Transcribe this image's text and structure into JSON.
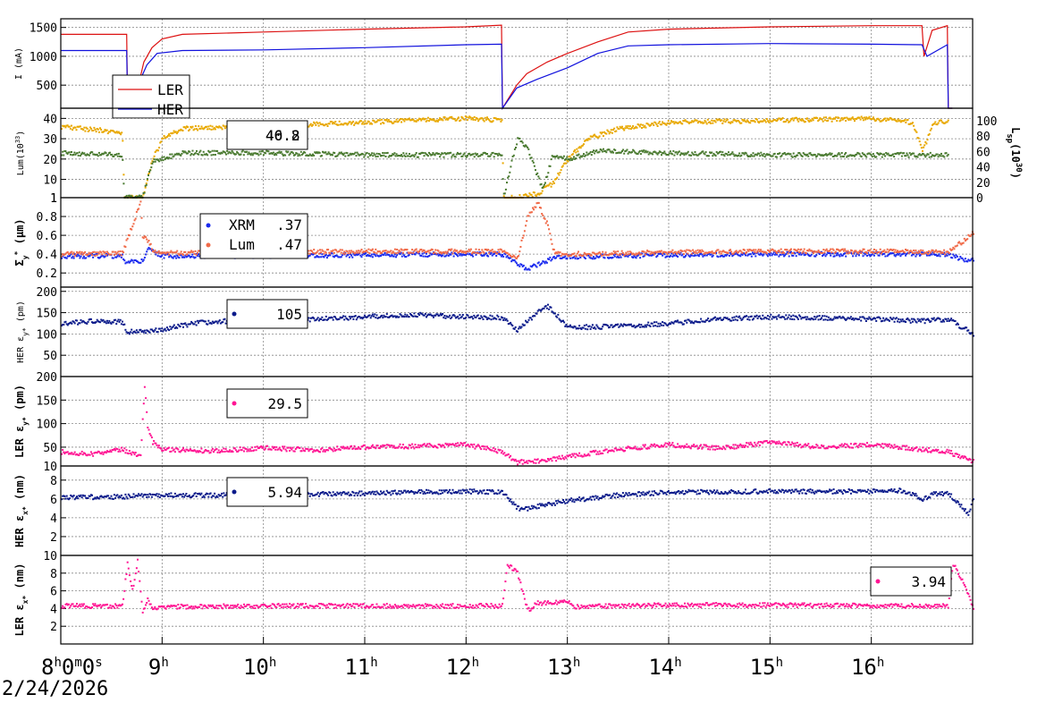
{
  "colors": {
    "ler_red": "#dd1111",
    "her_blue": "#1111dd",
    "lum_orange": "#e8a800",
    "lum_green": "#4a7a30",
    "xrm_blue": "#1a2aee",
    "lum_salmon": "#f06a48",
    "navy": "#0a1a8a",
    "pink": "#ff1493",
    "grid": "#888888"
  },
  "x_axis": {
    "date": "2/24/2026",
    "start_label": {
      "main": "8",
      "parts": [
        "h",
        "0",
        "m",
        "0",
        "s"
      ]
    },
    "ticks": [
      {
        "hour": 9,
        "label": "9",
        "sup": "h"
      },
      {
        "hour": 10,
        "label": "10",
        "sup": "h"
      },
      {
        "hour": 11,
        "label": "11",
        "sup": "h"
      },
      {
        "hour": 12,
        "label": "12",
        "sup": "h"
      },
      {
        "hour": 13,
        "label": "13",
        "sup": "h"
      },
      {
        "hour": 14,
        "label": "14",
        "sup": "h"
      },
      {
        "hour": 15,
        "label": "15",
        "sup": "h"
      },
      {
        "hour": 16,
        "label": "16",
        "sup": "h"
      }
    ]
  },
  "chart_data": [
    {
      "id": "current",
      "type": "line",
      "ylabel": "I (mA)",
      "ylim": [
        100,
        1650
      ],
      "yticks": [
        "500",
        "1000",
        "1500"
      ],
      "ytick_values": [
        500,
        1000,
        1500
      ],
      "legend": [
        "LER",
        "HER"
      ],
      "series": [
        {
          "name": "LER",
          "color_key": "ler_red",
          "x": [
            8.0,
            8.65,
            8.66,
            8.78,
            8.82,
            8.9,
            9.0,
            9.2,
            10.0,
            11.0,
            12.0,
            12.35,
            12.36,
            12.5,
            12.6,
            12.8,
            13.0,
            13.3,
            13.6,
            14.0,
            15.0,
            16.0,
            16.5,
            16.52,
            16.6,
            16.75,
            16.76,
            16.8
          ],
          "y": [
            1380,
            1380,
            100,
            600,
            900,
            1150,
            1300,
            1380,
            1420,
            1470,
            1510,
            1540,
            100,
            500,
            700,
            900,
            1050,
            1250,
            1420,
            1470,
            1510,
            1530,
            1530,
            1000,
            1450,
            1530,
            100,
            100
          ]
        },
        {
          "name": "HER",
          "color_key": "her_blue",
          "x": [
            8.0,
            8.65,
            8.66,
            8.85,
            8.95,
            9.2,
            10.0,
            11.0,
            12.0,
            12.35,
            12.36,
            12.5,
            12.7,
            13.0,
            13.3,
            13.6,
            14.0,
            15.0,
            16.0,
            16.5,
            16.55,
            16.75,
            16.76,
            16.8
          ],
          "y": [
            1100,
            1100,
            100,
            850,
            1050,
            1100,
            1110,
            1150,
            1200,
            1210,
            100,
            450,
            600,
            800,
            1050,
            1180,
            1200,
            1220,
            1210,
            1200,
            1000,
            1200,
            100,
            100
          ]
        }
      ]
    },
    {
      "id": "luminosity",
      "type": "scatter",
      "ylabel": "Lum(10",
      "ylabel_exp": "33",
      "ylabel_end": ")",
      "ylim": [
        1,
        45
      ],
      "yticks": [
        "1",
        "10",
        "20",
        "30",
        "40"
      ],
      "ytick_values": [
        1,
        10,
        20,
        30,
        40
      ],
      "y2label": "L",
      "y2label_sub": "sp",
      "y2label_mid": "(10",
      "y2label_exp": "30",
      "y2label_end": ")",
      "y2lim": [
        0,
        100
      ],
      "y2ticks": [
        "0",
        "20",
        "40",
        "60",
        "80",
        "100"
      ],
      "y2tick_values": [
        0,
        20,
        40,
        60,
        80,
        100
      ],
      "legend_values": [
        "46.2",
        "40.8"
      ],
      "series": [
        {
          "name": "",
          "color_key": "lum_orange",
          "x": [
            8.0,
            8.6,
            8.62,
            8.8,
            8.9,
            9.0,
            9.2,
            10.0,
            11.0,
            12.0,
            12.35,
            12.36,
            12.5,
            12.7,
            12.85,
            13.0,
            13.2,
            13.5,
            14.0,
            15.0,
            16.0,
            16.4,
            16.5,
            16.6,
            16.75
          ],
          "y": [
            36,
            33,
            1,
            1,
            20,
            30,
            35,
            36,
            38,
            40,
            39,
            1,
            1,
            3,
            8,
            20,
            30,
            35,
            38,
            39,
            40,
            38,
            24,
            37,
            39
          ]
        },
        {
          "name": "",
          "color_key": "lum_green",
          "x": [
            8.0,
            8.6,
            8.62,
            8.8,
            8.9,
            9.2,
            10.0,
            11.0,
            12.0,
            12.35,
            12.36,
            12.5,
            12.6,
            12.75,
            12.85,
            13.0,
            13.3,
            14.0,
            15.0,
            16.0,
            16.75
          ],
          "y": [
            23,
            22,
            1,
            1,
            19,
            23,
            23,
            22,
            22,
            22,
            1,
            30,
            25,
            5,
            22,
            20,
            24,
            23,
            22,
            22,
            22
          ]
        }
      ]
    },
    {
      "id": "sigma_y",
      "type": "scatter",
      "ylabel": "Σ",
      "ylabel_sub": "y",
      "ylabel_sup": "*",
      "ylabel_end": " (μm)",
      "ylim": [
        0.05,
        1.0
      ],
      "yticks": [
        "0.2",
        "0.4",
        "0.6",
        "0.8",
        "1"
      ],
      "ytick_values": [
        0.2,
        0.4,
        0.6,
        0.8,
        1.0
      ],
      "legend": [
        {
          "name": "XRM",
          "value": ".37",
          "color_key": "xrm_blue"
        },
        {
          "name": "Lum",
          "value": ".47",
          "color_key": "lum_salmon"
        }
      ],
      "series": [
        {
          "name": "XRM",
          "color_key": "xrm_blue",
          "x": [
            8.0,
            8.6,
            8.62,
            8.8,
            8.85,
            9.0,
            10.0,
            11.0,
            12.0,
            12.35,
            12.5,
            12.6,
            12.9,
            13.0,
            14.0,
            15.0,
            16.0,
            16.75,
            16.95,
            17.0
          ],
          "y": [
            0.38,
            0.38,
            0.32,
            0.33,
            0.45,
            0.38,
            0.38,
            0.39,
            0.4,
            0.4,
            0.3,
            0.24,
            0.38,
            0.37,
            0.39,
            0.4,
            0.4,
            0.4,
            0.32,
            0.34
          ]
        },
        {
          "name": "Lum",
          "color_key": "lum_salmon",
          "x": [
            8.0,
            8.6,
            8.78,
            8.8,
            8.85,
            8.9,
            9.0,
            10.0,
            11.0,
            12.0,
            12.35,
            12.5,
            12.6,
            12.7,
            12.8,
            12.85,
            12.9,
            13.0,
            14.0,
            15.0,
            16.0,
            16.75,
            17.0
          ],
          "y": [
            0.4,
            0.41,
            0.95,
            0.6,
            0.55,
            0.45,
            0.41,
            0.42,
            0.43,
            0.43,
            0.43,
            0.35,
            0.8,
            0.95,
            0.7,
            0.45,
            0.4,
            0.4,
            0.42,
            0.43,
            0.43,
            0.42,
            0.62
          ]
        }
      ]
    },
    {
      "id": "her_emit_y",
      "type": "scatter",
      "ylabel": "HER ε",
      "ylabel_sub": "y*",
      "ylabel_end": " (pm)",
      "ylim": [
        0,
        210
      ],
      "yticks": [
        "50",
        "100",
        "150",
        "200"
      ],
      "ytick_values": [
        50,
        100,
        150,
        200
      ],
      "legend_value": "105",
      "series": [
        {
          "name": "",
          "color_key": "navy",
          "x": [
            8.0,
            8.3,
            8.6,
            8.65,
            8.8,
            9.0,
            9.3,
            9.6,
            10.0,
            10.5,
            11.0,
            11.5,
            12.0,
            12.35,
            12.5,
            12.7,
            12.8,
            13.0,
            13.5,
            14.0,
            14.5,
            15.0,
            15.5,
            16.0,
            16.5,
            16.75,
            17.0
          ],
          "y": [
            125,
            130,
            128,
            105,
            105,
            110,
            125,
            130,
            128,
            135,
            140,
            145,
            140,
            138,
            110,
            150,
            165,
            115,
            118,
            125,
            135,
            140,
            138,
            135,
            130,
            135,
            100
          ]
        }
      ]
    },
    {
      "id": "ler_emit_y",
      "type": "scatter",
      "ylabel": "LER ε",
      "ylabel_sub": "y*",
      "ylabel_end": " (pm)",
      "ylim": [
        10,
        200
      ],
      "yticks": [
        "10",
        "50",
        "100",
        "150",
        "200"
      ],
      "ytick_values": [
        10,
        50,
        100,
        150,
        200
      ],
      "legend_value": "29.5",
      "series": [
        {
          "name": "",
          "color_key": "pink",
          "x": [
            8.0,
            8.3,
            8.6,
            8.78,
            8.82,
            8.85,
            8.9,
            9.0,
            9.5,
            10.0,
            10.5,
            11.0,
            11.5,
            12.0,
            12.35,
            12.5,
            12.8,
            13.0,
            13.5,
            14.0,
            14.5,
            15.0,
            15.5,
            16.0,
            16.5,
            16.75,
            17.0
          ],
          "y": [
            40,
            35,
            45,
            30,
            180,
            90,
            60,
            45,
            42,
            48,
            44,
            50,
            52,
            55,
            40,
            18,
            22,
            30,
            45,
            55,
            48,
            60,
            50,
            55,
            45,
            40,
            20
          ]
        }
      ]
    },
    {
      "id": "her_emit_x",
      "type": "scatter",
      "ylabel": "HER ε",
      "ylabel_sub": "x*",
      "ylabel_end": " (nm)",
      "ylim": [
        0,
        9.5
      ],
      "yticks": [
        "2",
        "4",
        "6",
        "8"
      ],
      "ytick_values": [
        2,
        4,
        6,
        8
      ],
      "legend_value": "5.94",
      "series": [
        {
          "name": "",
          "color_key": "navy",
          "x": [
            8.0,
            8.5,
            9.0,
            10.0,
            11.0,
            12.0,
            12.35,
            12.5,
            12.6,
            13.0,
            13.5,
            14.0,
            15.0,
            16.0,
            16.3,
            16.5,
            16.6,
            16.75,
            16.95,
            17.0
          ],
          "y": [
            6.2,
            6.2,
            6.4,
            6.4,
            6.6,
            6.8,
            6.7,
            5.0,
            5.0,
            5.8,
            6.4,
            6.7,
            6.8,
            6.8,
            6.9,
            6.0,
            6.5,
            6.6,
            4.5,
            5.9
          ]
        }
      ]
    },
    {
      "id": "ler_emit_x",
      "type": "scatter",
      "ylabel": "LER ε",
      "ylabel_sub": "x*",
      "ylabel_end": " (nm)",
      "ylim": [
        0,
        10
      ],
      "yticks": [
        "2",
        "4",
        "6",
        "8",
        "10"
      ],
      "ytick_values": [
        2,
        4,
        6,
        8,
        10
      ],
      "legend_value": "3.94",
      "series": [
        {
          "name": "",
          "color_key": "pink",
          "x": [
            8.0,
            8.6,
            8.65,
            8.7,
            8.75,
            8.8,
            8.85,
            8.9,
            9.0,
            10.0,
            11.0,
            12.0,
            12.35,
            12.4,
            12.5,
            12.6,
            12.7,
            13.0,
            13.05,
            13.5,
            14.0,
            15.0,
            16.0,
            16.75,
            16.8,
            16.9,
            17.0
          ],
          "y": [
            4.3,
            4.3,
            9.0,
            6.0,
            9.5,
            3.5,
            5.0,
            4.0,
            4.2,
            4.3,
            4.3,
            4.3,
            4.3,
            9.0,
            8.0,
            3.8,
            4.6,
            4.8,
            4.2,
            4.3,
            4.4,
            4.4,
            4.3,
            4.3,
            9.0,
            7.0,
            4.0
          ]
        }
      ]
    }
  ]
}
